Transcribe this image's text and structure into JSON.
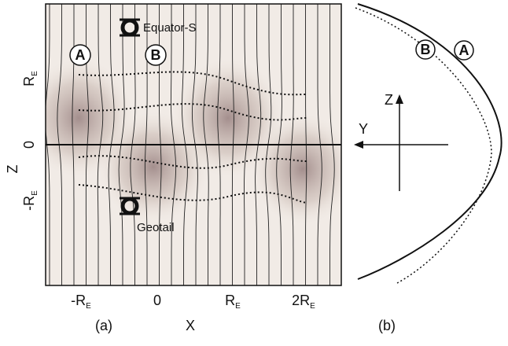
{
  "panel_a": {
    "label": "(a)",
    "x_title": "X",
    "z_title": "Z",
    "x_ticks": [
      {
        "text": "-R",
        "sub": "E"
      },
      {
        "text": "0"
      },
      {
        "text": "R",
        "sub": "E"
      },
      {
        "text": "2R",
        "sub": "E"
      }
    ],
    "z_ticks": [
      {
        "text": "R",
        "sub": "E"
      },
      {
        "text": "0"
      },
      {
        "text": "-R",
        "sub": "E"
      }
    ],
    "markers": [
      "A",
      "B"
    ],
    "spacecraft": [
      "Equator-S",
      "Geotail"
    ]
  },
  "panel_b": {
    "label": "(b)",
    "markers": [
      "B",
      "A"
    ],
    "axes": [
      "Z",
      "Y"
    ]
  }
}
